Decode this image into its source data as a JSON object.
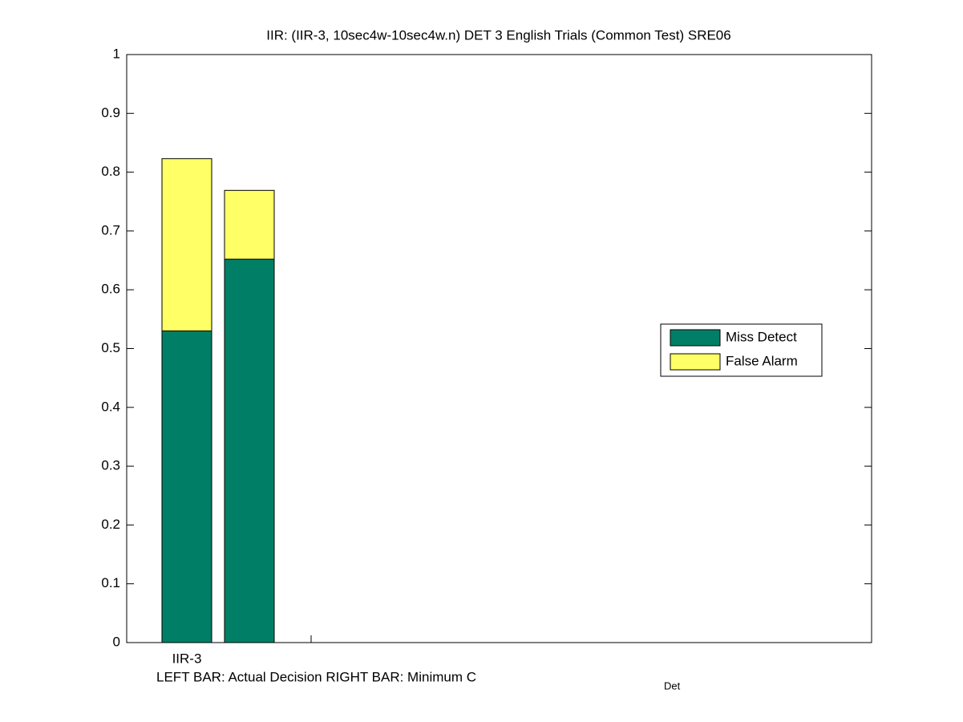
{
  "chart_data": {
    "type": "stacked-bar",
    "title": "IIR: (IIR-3, 10sec4w-10sec4w.n) DET 3 English Trials (Common Test) SRE06",
    "xlabel": {
      "main": "LEFT BAR: Actual Decision     RIGHT BAR: Minimum C",
      "subscript": "Det"
    },
    "categories": [
      "IIR-3"
    ],
    "series": [
      {
        "name": "Miss Detect",
        "color": "#007f66",
        "values": [
          [
            0.53,
            0.652
          ]
        ]
      },
      {
        "name": "False Alarm",
        "color": "#ffff66",
        "values": [
          [
            0.293,
            0.117
          ]
        ]
      }
    ],
    "ylim": [
      0,
      1
    ],
    "yticks": [
      0,
      0.1,
      0.2,
      0.3,
      0.4,
      0.5,
      0.6,
      0.7,
      0.8,
      0.9,
      1
    ],
    "legend": "right"
  }
}
